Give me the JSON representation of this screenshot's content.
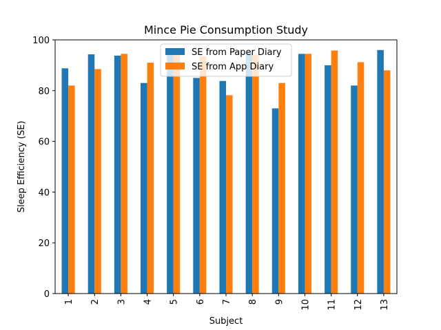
{
  "chart_data": {
    "type": "bar",
    "title": "Mince Pie Consumption Study",
    "xlabel": "Subject",
    "ylabel": "Sleep Efficiency (SE)",
    "ylim": [
      0,
      100
    ],
    "yticks": [
      0,
      20,
      40,
      60,
      80,
      100
    ],
    "categories": [
      "1",
      "2",
      "3",
      "4",
      "5",
      "6",
      "7",
      "8",
      "9",
      "10",
      "11",
      "12",
      "13"
    ],
    "series": [
      {
        "name": "SE from Paper Diary",
        "color": "#1f77b4",
        "values": [
          88.8,
          94.3,
          93.8,
          83.0,
          94.5,
          85.0,
          83.8,
          94.8,
          73.0,
          94.5,
          90.0,
          82.0,
          96.0
        ]
      },
      {
        "name": "SE from App Diary",
        "color": "#ff7f0e",
        "values": [
          82.0,
          88.5,
          94.5,
          91.0,
          94.0,
          93.5,
          78.2,
          94.0,
          83.0,
          94.5,
          95.8,
          91.2,
          88.0
        ]
      }
    ],
    "grid": false,
    "legend_position": "top-center",
    "x_tick_rotation": "vertical"
  }
}
